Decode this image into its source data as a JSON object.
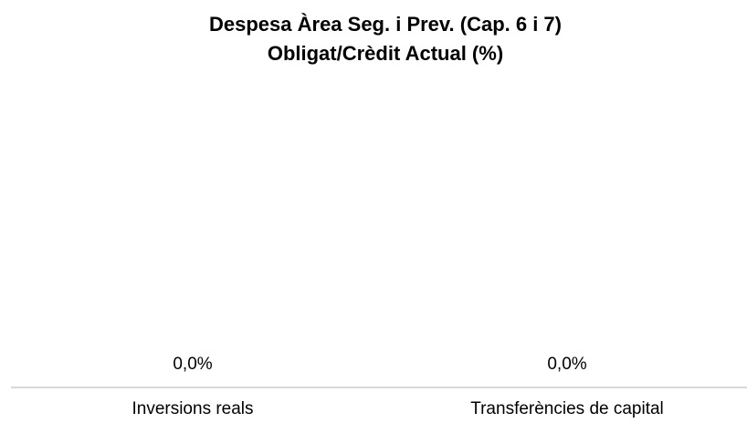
{
  "chart_data": {
    "type": "bar",
    "title": "Despesa Àrea Seg. i Prev. (Cap. 6 i 7)",
    "subtitle": "Obligat/Crèdit Actual (%)",
    "categories": [
      "Inversions reals",
      "Transferències de capital"
    ],
    "values": [
      0,
      0
    ],
    "value_labels": [
      "0,0%",
      "0,0%"
    ],
    "color": "#4472c4"
  }
}
